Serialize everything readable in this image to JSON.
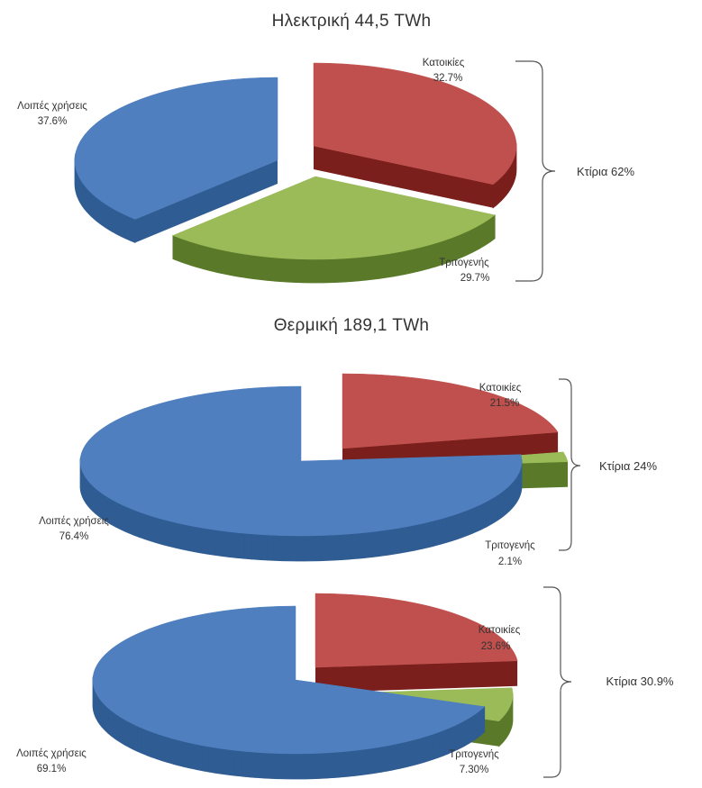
{
  "colors": {
    "blue": "#4f7fbf",
    "blue_side": "#2f5c93",
    "red": "#c0504d",
    "red_side": "#7a1f1c",
    "green": "#9bbb59",
    "green_side": "#5a7a2a"
  },
  "chart_data": [
    {
      "type": "pie",
      "title": "Ηλεκτρική 44,5 TWh",
      "slices": [
        {
          "label": "Κατοικίες",
          "value": 32.7,
          "value_text": "32.7%",
          "color": "#c0504d"
        },
        {
          "label": "Τριτογενής",
          "value": 29.7,
          "value_text": "29.7%",
          "color": "#9bbb59"
        },
        {
          "label": "Λοιπές χρήσεις",
          "value": 37.6,
          "value_text": "37.6%",
          "color": "#4f7fbf"
        }
      ],
      "group_label": "Κτίρια 62%",
      "exploded": [
        "Κατοικίες",
        "Τριτογενής",
        "Λοιπές χρήσεις"
      ]
    },
    {
      "type": "pie",
      "title": "Θερμική 189,1 TWh",
      "slices": [
        {
          "label": "Κατοικίες",
          "value": 21.5,
          "value_text": "21.5%",
          "color": "#c0504d"
        },
        {
          "label": "Τριτογενής",
          "value": 2.1,
          "value_text": "2.1%",
          "color": "#9bbb59"
        },
        {
          "label": "Λοιπές χρήσεις",
          "value": 76.4,
          "value_text": "76.4%",
          "color": "#4f7fbf"
        }
      ],
      "group_label": "Κτίρια 24%",
      "exploded": [
        "Κατοικίες",
        "Τριτογενής"
      ]
    },
    {
      "type": "pie",
      "title": "",
      "slices": [
        {
          "label": "Κατοικίες",
          "value": 23.6,
          "value_text": "23.6%",
          "color": "#c0504d"
        },
        {
          "label": "Τριτογενής",
          "value": 7.3,
          "value_text": "7.30%",
          "color": "#9bbb59"
        },
        {
          "label": "Λοιπές χρήσεις",
          "value": 69.1,
          "value_text": "69.1%",
          "color": "#4f7fbf"
        }
      ],
      "group_label": "Κτίρια 30.9%",
      "exploded": [
        "Κατοικίες",
        "Τριτογενής"
      ]
    }
  ]
}
